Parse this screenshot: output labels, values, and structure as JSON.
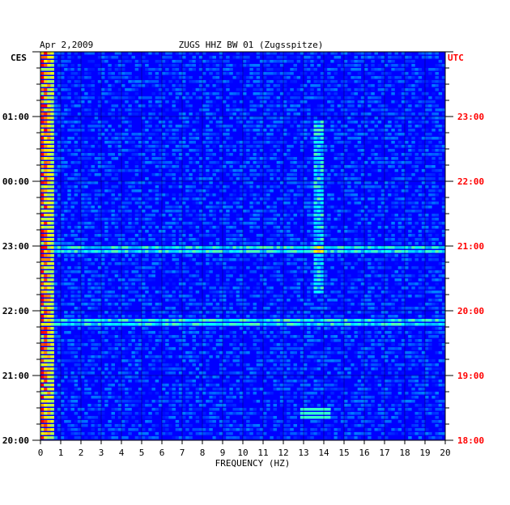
{
  "chart_data": {
    "type": "heatmap",
    "title_date": "Apr 2,2009",
    "title_station": "ZUGS HHZ BW 01 (Zugsspitze)",
    "xlabel": "FREQUENCY (HZ)",
    "xlim": [
      0,
      20
    ],
    "x_ticks": [
      "0",
      "1",
      "2",
      "3",
      "4",
      "5",
      "6",
      "7",
      "8",
      "9",
      "10",
      "11",
      "12",
      "13",
      "14",
      "15",
      "16",
      "17",
      "18",
      "19",
      "20"
    ],
    "left_axis": {
      "timezone": "CES",
      "tick_labels": [
        "01:00",
        "00:00",
        "23:00",
        "22:00",
        "21:00",
        "20:00"
      ]
    },
    "right_axis": {
      "timezone": "UTC",
      "tick_labels": [
        "23:00",
        "22:00",
        "21:00",
        "20:00",
        "19:00",
        "18:00"
      ]
    },
    "grid": true,
    "colormap": [
      "#000080",
      "#0000ff",
      "#00ffff",
      "#ffff00",
      "#ff0000"
    ],
    "background_color": "#0000ff",
    "right_axis_color": "#ff0000",
    "features": [
      {
        "description": "strong low-frequency energy",
        "freq_range": [
          0,
          0.6
        ],
        "relative_level": "high"
      },
      {
        "description": "persistent line",
        "freq": 13.7,
        "relative_level": "medium"
      },
      {
        "description": "broadband bright row",
        "time_utc": "20:55",
        "relative_level": "medium"
      },
      {
        "description": "broadband bright row",
        "time_utc": "19:50",
        "relative_level": "medium"
      },
      {
        "description": "short burst",
        "freq_range": [
          12.8,
          14.2
        ],
        "time_utc": "18:27",
        "relative_level": "high"
      }
    ]
  }
}
